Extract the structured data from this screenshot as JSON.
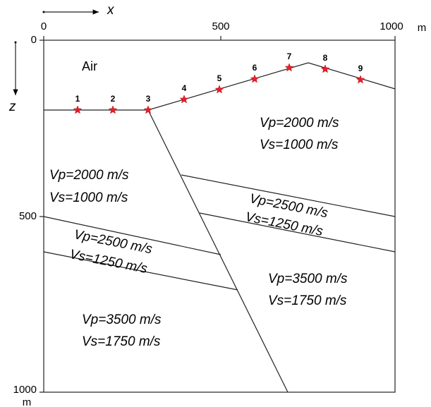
{
  "axes": {
    "x_label": "x",
    "z_label": "z",
    "x_ticks": [
      0,
      500,
      1000
    ],
    "z_ticks": [
      0,
      500,
      1000
    ],
    "x_unit": "m",
    "z_unit": "m"
  },
  "stations": [
    1,
    2,
    3,
    4,
    5,
    6,
    7,
    8,
    9
  ],
  "regions": {
    "air": "Air",
    "upper_right": {
      "vp": "Vp=2000 m/s",
      "vs": "Vs=1000 m/s"
    },
    "upper_left": {
      "vp": "Vp=2000 m/s",
      "vs": "Vs=1000 m/s"
    },
    "middle_right": {
      "vp": "Vp=2500 m/s",
      "vs": "Vs=1250 m/s"
    },
    "middle_left": {
      "vp": "Vp=2500 m/s",
      "vs": "Vs=1250 m/s"
    },
    "lower_right": {
      "vp": "Vp=3500 m/s",
      "vs": "Vs=1750 m/s"
    },
    "lower_left": {
      "vp": "Vp=3500 m/s",
      "vs": "Vs=1750 m/s"
    }
  }
}
